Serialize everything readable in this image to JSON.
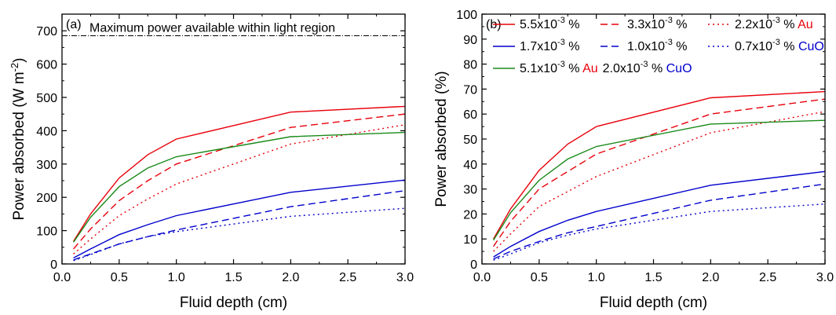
{
  "chart_data": [
    {
      "type": "line",
      "panel_label": "(a)",
      "xlabel": "Fluid depth (cm)",
      "ylabel_main": "Power absorbed (W m",
      "ylabel_sup": "-2",
      "ylabel_end": ")",
      "xlim": [
        0.0,
        3.0
      ],
      "ylim": [
        0,
        750
      ],
      "xticks": [
        0.0,
        0.5,
        1.0,
        1.5,
        2.0,
        2.5,
        3.0
      ],
      "yticks": [
        0,
        100,
        200,
        300,
        400,
        500,
        600,
        700
      ],
      "x": [
        0.1,
        0.25,
        0.5,
        0.75,
        1.0,
        2.0,
        3.0
      ],
      "reference_line": {
        "y": 685,
        "label": "Maximum power available within light region",
        "color": "#000000"
      },
      "series": [
        {
          "color": "#e8000b",
          "dash": "solid",
          "values": [
            68,
            150,
            258,
            328,
            375,
            456,
            473
          ]
        },
        {
          "color": "#e8000b",
          "dash": "dashed",
          "values": [
            45,
            105,
            190,
            250,
            300,
            410,
            450
          ]
        },
        {
          "color": "#e8000b",
          "dash": "dotted",
          "values": [
            30,
            75,
            145,
            195,
            240,
            360,
            418
          ]
        },
        {
          "color": "#0000cc",
          "dash": "solid",
          "values": [
            18,
            45,
            88,
            118,
            145,
            215,
            252
          ]
        },
        {
          "color": "#0000cc",
          "dash": "dashed",
          "values": [
            12,
            30,
            60,
            82,
            102,
            172,
            220
          ]
        },
        {
          "color": "#0000cc",
          "dash": "dotted",
          "values": [
            10,
            28,
            60,
            82,
            97,
            143,
            167
          ]
        },
        {
          "color": "#1a8a1a",
          "dash": "solid",
          "values": [
            65,
            140,
            232,
            288,
            322,
            382,
            395
          ]
        }
      ]
    },
    {
      "type": "line",
      "panel_label": "(b)",
      "xlabel": "Fluid depth (cm)",
      "ylabel": "Power absorbed (%)",
      "xlim": [
        0.0,
        3.0
      ],
      "ylim": [
        0,
        100
      ],
      "xticks": [
        0.0,
        0.5,
        1.0,
        1.5,
        2.0,
        2.5,
        3.0
      ],
      "yticks": [
        0,
        10,
        20,
        30,
        40,
        50,
        60,
        70,
        80,
        90,
        100
      ],
      "x": [
        0.1,
        0.25,
        0.5,
        0.75,
        1.0,
        2.0,
        3.0
      ],
      "series": [
        {
          "color": "#e8000b",
          "dash": "solid",
          "values": [
            10,
            22,
            37.5,
            48,
            55,
            66.5,
            69
          ]
        },
        {
          "color": "#e8000b",
          "dash": "dashed",
          "values": [
            7,
            17,
            30,
            37,
            44,
            60,
            66
          ]
        },
        {
          "color": "#e8000b",
          "dash": "dotted",
          "values": [
            5,
            12,
            23,
            29,
            35,
            52.5,
            61
          ]
        },
        {
          "color": "#0000cc",
          "dash": "solid",
          "values": [
            2.8,
            7,
            13,
            17.5,
            21,
            31.5,
            37
          ]
        },
        {
          "color": "#0000cc",
          "dash": "dashed",
          "values": [
            2,
            5,
            9,
            12.5,
            15,
            25.5,
            32
          ]
        },
        {
          "color": "#0000cc",
          "dash": "dotted",
          "values": [
            1.5,
            4,
            8.5,
            11.5,
            14,
            21,
            24
          ]
        },
        {
          "color": "#1a8a1a",
          "dash": "solid",
          "values": [
            9.5,
            20.5,
            33.5,
            42,
            47,
            56,
            57.5
          ]
        }
      ],
      "legend": [
        [
          {
            "value": "5.5",
            "exp": "-3",
            "unit": "%",
            "color": "#e8000b",
            "dash": "solid"
          },
          {
            "value": "3.3",
            "exp": "-3",
            "unit": "%",
            "color": "#e8000b",
            "dash": "dashed"
          },
          {
            "value": "2.2",
            "exp": "-3",
            "unit": "%",
            "color": "#e8000b",
            "dash": "dotted",
            "material": "Au",
            "material_color": "#e8000b"
          }
        ],
        [
          {
            "value": "1.7",
            "exp": "-3",
            "unit": "%",
            "color": "#0000cc",
            "dash": "solid"
          },
          {
            "value": "1.0",
            "exp": "-3",
            "unit": "%",
            "color": "#0000cc",
            "dash": "dashed"
          },
          {
            "value": "0.7",
            "exp": "-3",
            "unit": "%",
            "color": "#0000cc",
            "dash": "dotted",
            "material": "CuO",
            "material_color": "#0000cc"
          }
        ],
        [
          {
            "value": "5.1",
            "exp": "-3",
            "unit": "%",
            "color": "#1a8a1a",
            "dash": "solid",
            "material": "Au",
            "material_color": "#e8000b"
          },
          {
            "value": "2.0",
            "exp": "-3",
            "unit": "%",
            "color": null,
            "dash": null,
            "material": "CuO",
            "material_color": "#0000cc"
          }
        ]
      ],
      "legend_placement": "top-left"
    }
  ]
}
